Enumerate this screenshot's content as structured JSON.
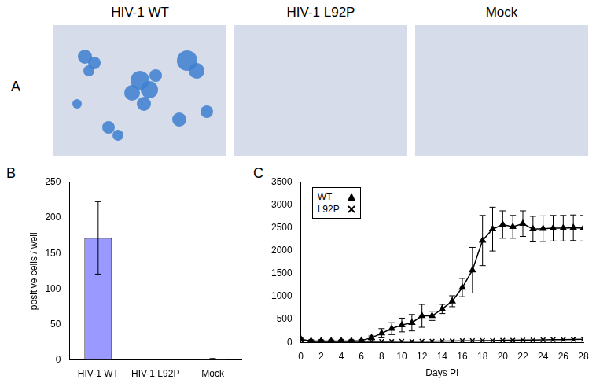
{
  "images": {
    "label": "A",
    "titles": [
      "HIV-1 WT",
      "HIV-1 L92P",
      "Mock"
    ]
  },
  "chart_data": [
    {
      "label": "B",
      "type": "bar",
      "categories": [
        "HIV-1 WT",
        "HIV-1 L92P",
        "Mock"
      ],
      "values": [
        172,
        0,
        1
      ],
      "errors": [
        51,
        0,
        1
      ],
      "color": "#9999ff",
      "y_label": "positive cells / well",
      "ylim": [
        0,
        250
      ],
      "yticks": [
        0,
        50,
        100,
        150,
        200,
        250
      ],
      "grid": false
    },
    {
      "label": "C",
      "type": "line",
      "x": [
        0,
        1,
        2,
        3,
        4,
        5,
        6,
        7,
        8,
        9,
        10,
        11,
        12,
        13,
        14,
        15,
        16,
        17,
        18,
        19,
        20,
        21,
        22,
        23,
        24,
        25,
        26,
        27,
        28
      ],
      "x_label": "Days PI",
      "xlim": [
        0,
        28
      ],
      "xticks": [
        0,
        2,
        4,
        6,
        8,
        10,
        12,
        14,
        16,
        18,
        20,
        22,
        24,
        26,
        28
      ],
      "ylim": [
        0,
        3500
      ],
      "yticks": [
        0,
        500,
        1000,
        1500,
        2000,
        2500,
        3000,
        3500
      ],
      "grid": false,
      "legend": "upper left",
      "series": [
        {
          "name": "WT",
          "color": "#000000",
          "marker": "triangle",
          "values": [
            70,
            30,
            30,
            30,
            30,
            30,
            40,
            100,
            200,
            300,
            380,
            430,
            580,
            580,
            730,
            900,
            1200,
            1580,
            2230,
            2480,
            2580,
            2530,
            2600,
            2480,
            2490,
            2500,
            2500,
            2510,
            2500
          ],
          "errors": [
            40,
            20,
            20,
            20,
            20,
            20,
            20,
            40,
            100,
            130,
            150,
            180,
            250,
            100,
            100,
            120,
            200,
            500,
            550,
            480,
            300,
            250,
            280,
            280,
            280,
            280,
            280,
            280,
            280
          ]
        },
        {
          "name": "L92P",
          "color": "#000000",
          "marker": "cross",
          "values": [
            50,
            20,
            20,
            20,
            20,
            20,
            20,
            20,
            20,
            20,
            25,
            25,
            25,
            25,
            30,
            30,
            35,
            35,
            40,
            40,
            45,
            45,
            50,
            50,
            55,
            60,
            60,
            65,
            70
          ]
        }
      ]
    }
  ]
}
